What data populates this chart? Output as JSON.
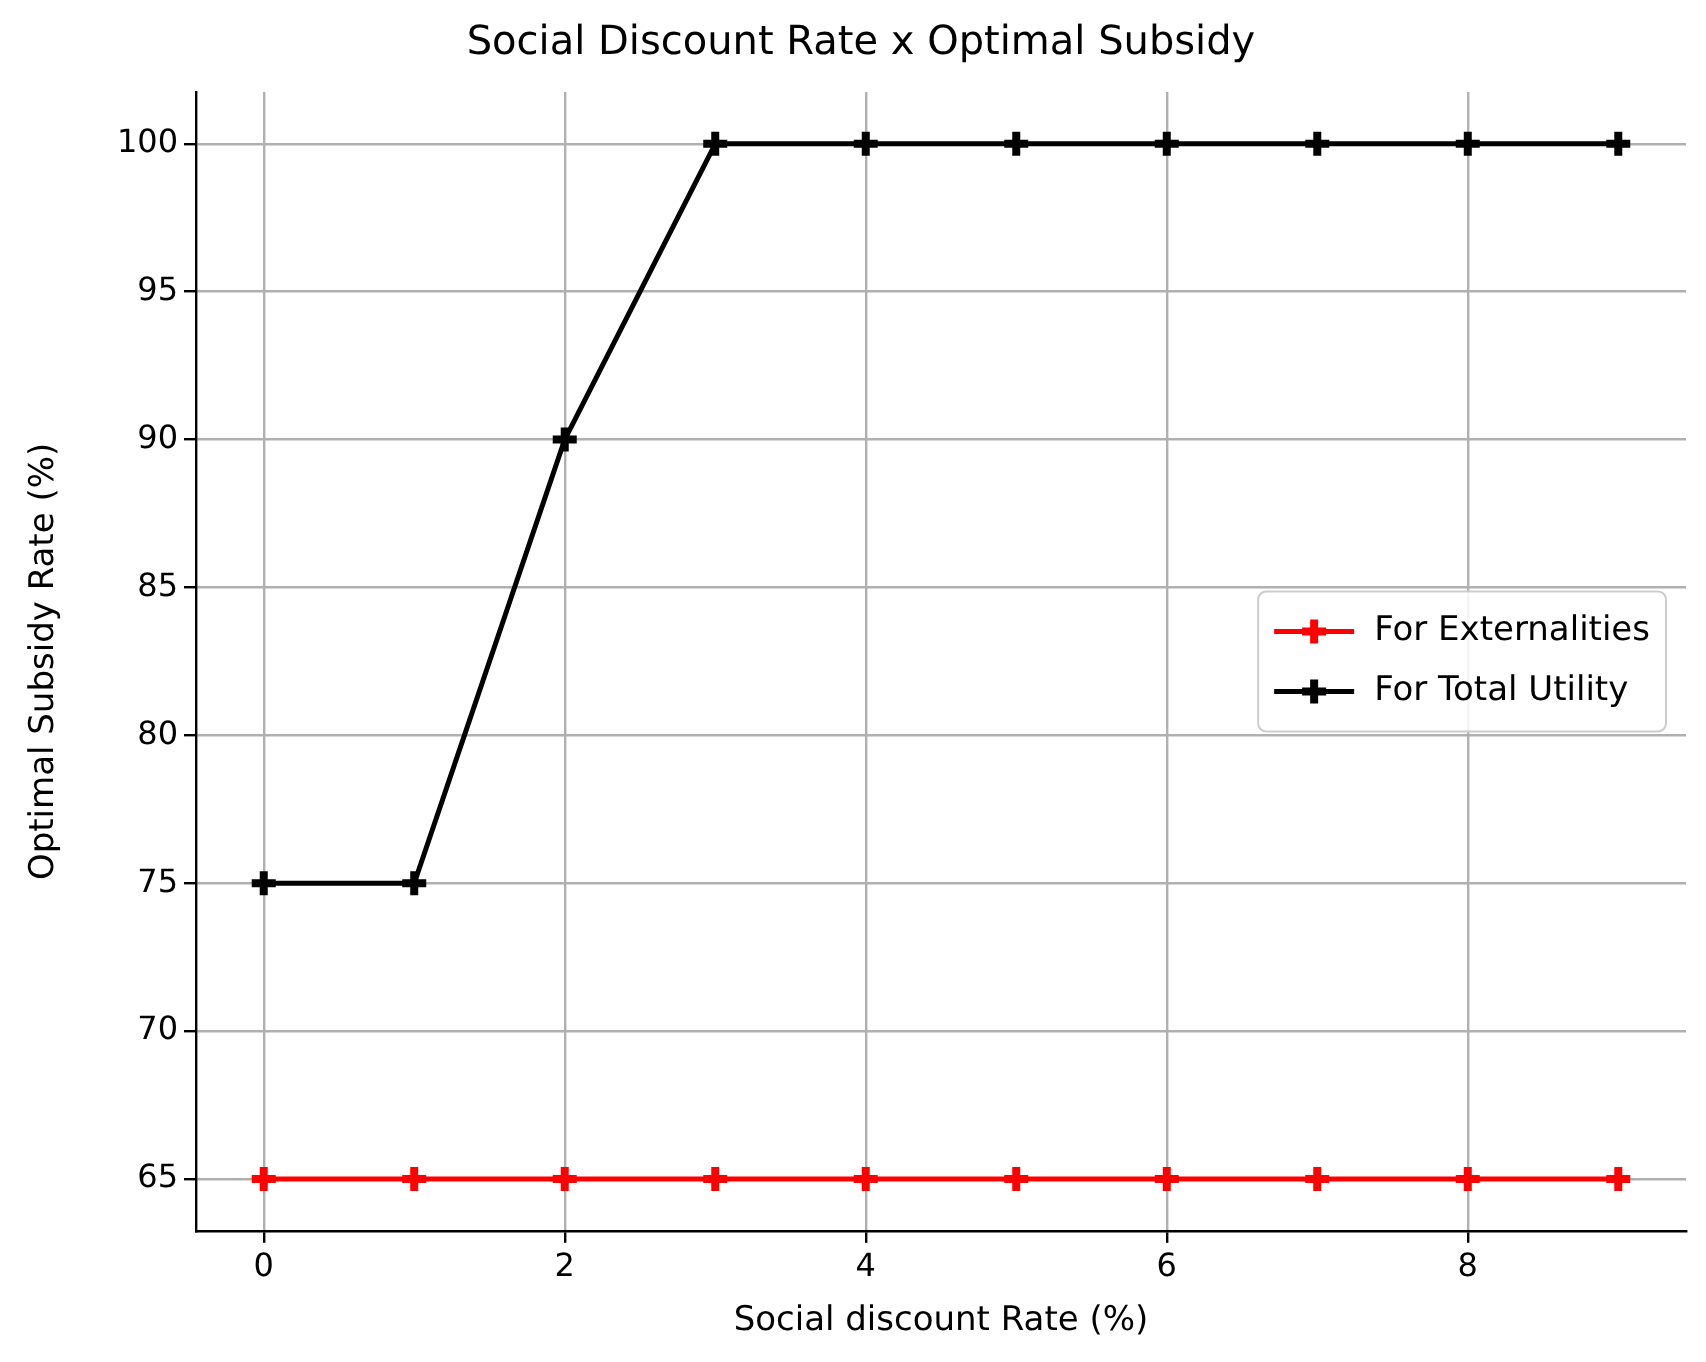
{
  "chart_data": {
    "type": "line",
    "title": "Social Discount Rate x Optimal Subsidy",
    "xlabel": "Social discount Rate (%)",
    "ylabel": "Optimal Subsidy Rate (%)",
    "x": [
      0,
      1,
      2,
      3,
      4,
      5,
      6,
      7,
      8,
      9
    ],
    "series": [
      {
        "name": "For Externalities",
        "color": "#ff0000",
        "values": [
          65,
          65,
          65,
          65,
          65,
          65,
          65,
          65,
          65,
          65
        ]
      },
      {
        "name": "For Total Utility",
        "color": "#000000",
        "values": [
          75,
          75,
          90,
          100,
          100,
          100,
          100,
          100,
          100,
          100
        ]
      }
    ],
    "xlim": [
      -0.45,
      9.45
    ],
    "ylim": [
      63.25,
      101.75
    ],
    "xticks": [
      0,
      2,
      4,
      6,
      8
    ],
    "yticks": [
      65,
      70,
      75,
      80,
      85,
      90,
      95,
      100
    ],
    "grid": true,
    "legend": "center right",
    "marker": "cross",
    "line_style": "solid"
  }
}
